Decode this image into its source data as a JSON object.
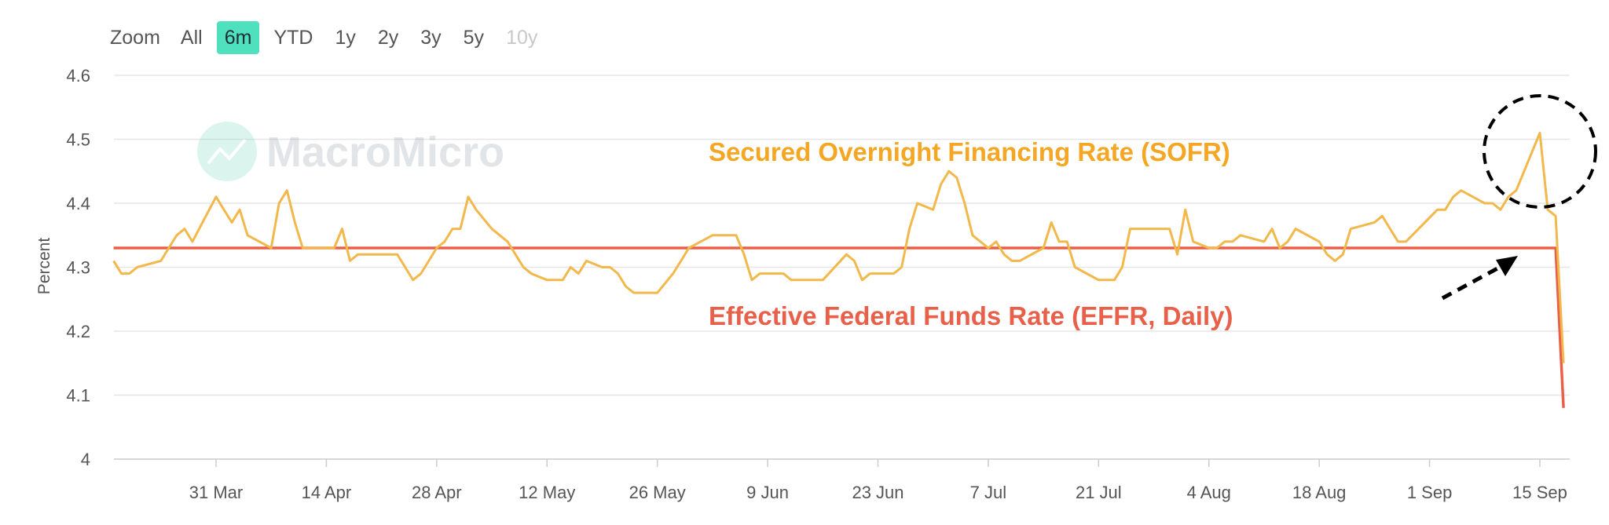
{
  "range_selector": {
    "zoom_label": "Zoom",
    "buttons": [
      {
        "label": "All",
        "active": false,
        "disabled": false
      },
      {
        "label": "6m",
        "active": true,
        "disabled": false
      },
      {
        "label": "YTD",
        "active": false,
        "disabled": false
      },
      {
        "label": "1y",
        "active": false,
        "disabled": false
      },
      {
        "label": "2y",
        "active": false,
        "disabled": false
      },
      {
        "label": "3y",
        "active": false,
        "disabled": false
      },
      {
        "label": "5y",
        "active": false,
        "disabled": false
      },
      {
        "label": "10y",
        "active": false,
        "disabled": true
      }
    ]
  },
  "watermark": "MacroMicro",
  "chart_data": {
    "type": "line",
    "ylabel": "Percent",
    "ylim": [
      4.0,
      4.6
    ],
    "yticks": [
      "4",
      "4.1",
      "4.2",
      "4.3",
      "4.4",
      "4.5",
      "4.6"
    ],
    "xlim": [
      "2025-03-18",
      "2025-09-17"
    ],
    "xticks": [
      {
        "label": "31 Mar",
        "date": "2025-03-31"
      },
      {
        "label": "14 Apr",
        "date": "2025-04-14"
      },
      {
        "label": "28 Apr",
        "date": "2025-04-28"
      },
      {
        "label": "12 May",
        "date": "2025-05-12"
      },
      {
        "label": "26 May",
        "date": "2025-05-26"
      },
      {
        "label": "9 Jun",
        "date": "2025-06-09"
      },
      {
        "label": "23 Jun",
        "date": "2025-06-23"
      },
      {
        "label": "7 Jul",
        "date": "2025-07-07"
      },
      {
        "label": "21 Jul",
        "date": "2025-07-21"
      },
      {
        "label": "4 Aug",
        "date": "2025-08-04"
      },
      {
        "label": "18 Aug",
        "date": "2025-08-18"
      },
      {
        "label": "1 Sep",
        "date": "2025-09-01"
      },
      {
        "label": "15 Sep",
        "date": "2025-09-15"
      }
    ],
    "grid": true,
    "series": [
      {
        "name": "Effective Federal Funds Rate (EFFR, Daily)",
        "color": "#e8604a",
        "points": [
          [
            "2025-03-18",
            4.33
          ],
          [
            "2025-09-17",
            4.33
          ],
          [
            "2025-09-18",
            4.08
          ]
        ]
      },
      {
        "name": "Secured Overnight Financing Rate (SOFR)",
        "color": "#f2b84b",
        "points": [
          [
            "2025-03-18",
            4.31
          ],
          [
            "2025-03-19",
            4.29
          ],
          [
            "2025-03-20",
            4.29
          ],
          [
            "2025-03-21",
            4.3
          ],
          [
            "2025-03-24",
            4.31
          ],
          [
            "2025-03-25",
            4.33
          ],
          [
            "2025-03-26",
            4.35
          ],
          [
            "2025-03-27",
            4.36
          ],
          [
            "2025-03-28",
            4.34
          ],
          [
            "2025-03-31",
            4.41
          ],
          [
            "2025-04-01",
            4.39
          ],
          [
            "2025-04-02",
            4.37
          ],
          [
            "2025-04-03",
            4.39
          ],
          [
            "2025-04-04",
            4.35
          ],
          [
            "2025-04-07",
            4.33
          ],
          [
            "2025-04-08",
            4.4
          ],
          [
            "2025-04-09",
            4.42
          ],
          [
            "2025-04-10",
            4.37
          ],
          [
            "2025-04-11",
            4.33
          ],
          [
            "2025-04-14",
            4.33
          ],
          [
            "2025-04-15",
            4.33
          ],
          [
            "2025-04-16",
            4.36
          ],
          [
            "2025-04-17",
            4.31
          ],
          [
            "2025-04-18",
            4.32
          ],
          [
            "2025-04-21",
            4.32
          ],
          [
            "2025-04-22",
            4.32
          ],
          [
            "2025-04-23",
            4.32
          ],
          [
            "2025-04-24",
            4.3
          ],
          [
            "2025-04-25",
            4.28
          ],
          [
            "2025-04-26",
            4.29
          ],
          [
            "2025-04-28",
            4.33
          ],
          [
            "2025-04-29",
            4.34
          ],
          [
            "2025-04-30",
            4.36
          ],
          [
            "2025-05-01",
            4.36
          ],
          [
            "2025-05-02",
            4.41
          ],
          [
            "2025-05-03",
            4.39
          ],
          [
            "2025-05-05",
            4.36
          ],
          [
            "2025-05-06",
            4.35
          ],
          [
            "2025-05-07",
            4.34
          ],
          [
            "2025-05-08",
            4.32
          ],
          [
            "2025-05-09",
            4.3
          ],
          [
            "2025-05-10",
            4.29
          ],
          [
            "2025-05-12",
            4.28
          ],
          [
            "2025-05-14",
            4.28
          ],
          [
            "2025-05-15",
            4.3
          ],
          [
            "2025-05-16",
            4.29
          ],
          [
            "2025-05-17",
            4.31
          ],
          [
            "2025-05-19",
            4.3
          ],
          [
            "2025-05-20",
            4.3
          ],
          [
            "2025-05-21",
            4.29
          ],
          [
            "2025-05-22",
            4.27
          ],
          [
            "2025-05-23",
            4.26
          ],
          [
            "2025-05-26",
            4.26
          ],
          [
            "2025-05-28",
            4.29
          ],
          [
            "2025-05-29",
            4.31
          ],
          [
            "2025-05-30",
            4.33
          ],
          [
            "2025-06-02",
            4.35
          ],
          [
            "2025-06-05",
            4.35
          ],
          [
            "2025-06-06",
            4.32
          ],
          [
            "2025-06-07",
            4.28
          ],
          [
            "2025-06-08",
            4.29
          ],
          [
            "2025-06-09",
            4.29
          ],
          [
            "2025-06-11",
            4.29
          ],
          [
            "2025-06-12",
            4.28
          ],
          [
            "2025-06-13",
            4.28
          ],
          [
            "2025-06-15",
            4.28
          ],
          [
            "2025-06-16",
            4.28
          ],
          [
            "2025-06-19",
            4.32
          ],
          [
            "2025-06-20",
            4.31
          ],
          [
            "2025-06-21",
            4.28
          ],
          [
            "2025-06-22",
            4.29
          ],
          [
            "2025-06-23",
            4.29
          ],
          [
            "2025-06-25",
            4.29
          ],
          [
            "2025-06-26",
            4.3
          ],
          [
            "2025-06-27",
            4.36
          ],
          [
            "2025-06-28",
            4.4
          ],
          [
            "2025-06-30",
            4.39
          ],
          [
            "2025-07-01",
            4.43
          ],
          [
            "2025-07-02",
            4.45
          ],
          [
            "2025-07-03",
            4.44
          ],
          [
            "2025-07-04",
            4.4
          ],
          [
            "2025-07-05",
            4.35
          ],
          [
            "2025-07-07",
            4.33
          ],
          [
            "2025-07-08",
            4.34
          ],
          [
            "2025-07-09",
            4.32
          ],
          [
            "2025-07-10",
            4.31
          ],
          [
            "2025-07-11",
            4.31
          ],
          [
            "2025-07-14",
            4.33
          ],
          [
            "2025-07-15",
            4.37
          ],
          [
            "2025-07-16",
            4.34
          ],
          [
            "2025-07-17",
            4.34
          ],
          [
            "2025-07-18",
            4.3
          ],
          [
            "2025-07-21",
            4.28
          ],
          [
            "2025-07-22",
            4.28
          ],
          [
            "2025-07-23",
            4.28
          ],
          [
            "2025-07-24",
            4.3
          ],
          [
            "2025-07-25",
            4.36
          ],
          [
            "2025-07-29",
            4.36
          ],
          [
            "2025-07-30",
            4.36
          ],
          [
            "2025-07-31",
            4.32
          ],
          [
            "2025-08-01",
            4.39
          ],
          [
            "2025-08-02",
            4.34
          ],
          [
            "2025-08-04",
            4.33
          ],
          [
            "2025-08-05",
            4.33
          ],
          [
            "2025-08-06",
            4.34
          ],
          [
            "2025-08-07",
            4.34
          ],
          [
            "2025-08-08",
            4.35
          ],
          [
            "2025-08-11",
            4.34
          ],
          [
            "2025-08-12",
            4.36
          ],
          [
            "2025-08-13",
            4.33
          ],
          [
            "2025-08-14",
            4.34
          ],
          [
            "2025-08-15",
            4.36
          ],
          [
            "2025-08-18",
            4.34
          ],
          [
            "2025-08-19",
            4.32
          ],
          [
            "2025-08-20",
            4.31
          ],
          [
            "2025-08-21",
            4.32
          ],
          [
            "2025-08-22",
            4.36
          ],
          [
            "2025-08-25",
            4.37
          ],
          [
            "2025-08-26",
            4.38
          ],
          [
            "2025-08-27",
            4.36
          ],
          [
            "2025-08-28",
            4.34
          ],
          [
            "2025-08-29",
            4.34
          ],
          [
            "2025-09-02",
            4.39
          ],
          [
            "2025-09-03",
            4.39
          ],
          [
            "2025-09-04",
            4.41
          ],
          [
            "2025-09-05",
            4.42
          ],
          [
            "2025-09-08",
            4.4
          ],
          [
            "2025-09-09",
            4.4
          ],
          [
            "2025-09-10",
            4.39
          ],
          [
            "2025-09-11",
            4.41
          ],
          [
            "2025-09-12",
            4.42
          ],
          [
            "2025-09-15",
            4.51
          ],
          [
            "2025-09-16",
            4.39
          ],
          [
            "2025-09-17",
            4.38
          ],
          [
            "2025-09-18",
            4.15
          ]
        ]
      }
    ],
    "annotations": [
      {
        "type": "circle",
        "description": "dashed circle around SOFR spike"
      },
      {
        "type": "arrow",
        "description": "dashed arrow pointing to EFFR line"
      }
    ]
  }
}
